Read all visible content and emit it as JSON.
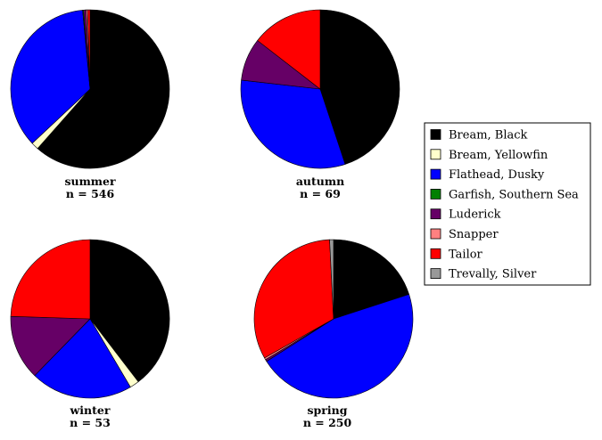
{
  "chart_data": [
    {
      "type": "pie",
      "title": "summer",
      "n_label": "n = 546",
      "slices": [
        {
          "label": "Bream, Black",
          "value": 61.5
        },
        {
          "label": "Bream, Yellowfin",
          "value": 1.5
        },
        {
          "label": "Flathead, Dusky",
          "value": 35.5
        },
        {
          "label": "Garfish, Southern Sea",
          "value": 0.2
        },
        {
          "label": "Luderick",
          "value": 0.5
        },
        {
          "label": "Snapper",
          "value": 0.3
        },
        {
          "label": "Tailor",
          "value": 0.5
        },
        {
          "label": "Trevally, Silver",
          "value": 0
        }
      ]
    },
    {
      "type": "pie",
      "title": "autumn",
      "n_label": "n = 69",
      "slices": [
        {
          "label": "Bream, Black",
          "value": 44.9
        },
        {
          "label": "Bream, Yellowfin",
          "value": 0
        },
        {
          "label": "Flathead, Dusky",
          "value": 31.9
        },
        {
          "label": "Garfish, Southern Sea",
          "value": 0
        },
        {
          "label": "Luderick",
          "value": 8.7
        },
        {
          "label": "Snapper",
          "value": 0
        },
        {
          "label": "Tailor",
          "value": 14.5
        },
        {
          "label": "Trevally, Silver",
          "value": 0
        }
      ]
    },
    {
      "type": "pie",
      "title": "winter",
      "n_label": "n = 53",
      "slices": [
        {
          "label": "Bream, Black",
          "value": 39.6
        },
        {
          "label": "Bream, Yellowfin",
          "value": 1.9
        },
        {
          "label": "Flathead, Dusky",
          "value": 20.8
        },
        {
          "label": "Garfish, Southern Sea",
          "value": 0
        },
        {
          "label": "Luderick",
          "value": 13.2
        },
        {
          "label": "Snapper",
          "value": 0
        },
        {
          "label": "Tailor",
          "value": 24.5
        },
        {
          "label": "Trevally, Silver",
          "value": 0
        }
      ]
    },
    {
      "type": "pie",
      "title": "spring",
      "n_label": "n = 250",
      "slices": [
        {
          "label": "Bream, Black",
          "value": 20
        },
        {
          "label": "Bream, Yellowfin",
          "value": 0
        },
        {
          "label": "Flathead, Dusky",
          "value": 46
        },
        {
          "label": "Garfish, Southern Sea",
          "value": 0
        },
        {
          "label": "Luderick",
          "value": 0.4
        },
        {
          "label": "Snapper",
          "value": 0.4
        },
        {
          "label": "Tailor",
          "value": 32.4
        },
        {
          "label": "Trevally, Silver",
          "value": 0.8
        }
      ]
    }
  ],
  "legend": {
    "placement": "right",
    "entries": [
      {
        "label": "Bream, Black",
        "color": "#000000"
      },
      {
        "label": "Bream, Yellowfin",
        "color": "#FFFFCC"
      },
      {
        "label": "Flathead, Dusky",
        "color": "#0000FF"
      },
      {
        "label": "Garfish, Southern Sea",
        "color": "#008000"
      },
      {
        "label": "Luderick",
        "color": "#660066"
      },
      {
        "label": "Snapper",
        "color": "#FF8080"
      },
      {
        "label": "Tailor",
        "color": "#FF0000"
      },
      {
        "label": "Trevally, Silver",
        "color": "#999999"
      }
    ]
  }
}
